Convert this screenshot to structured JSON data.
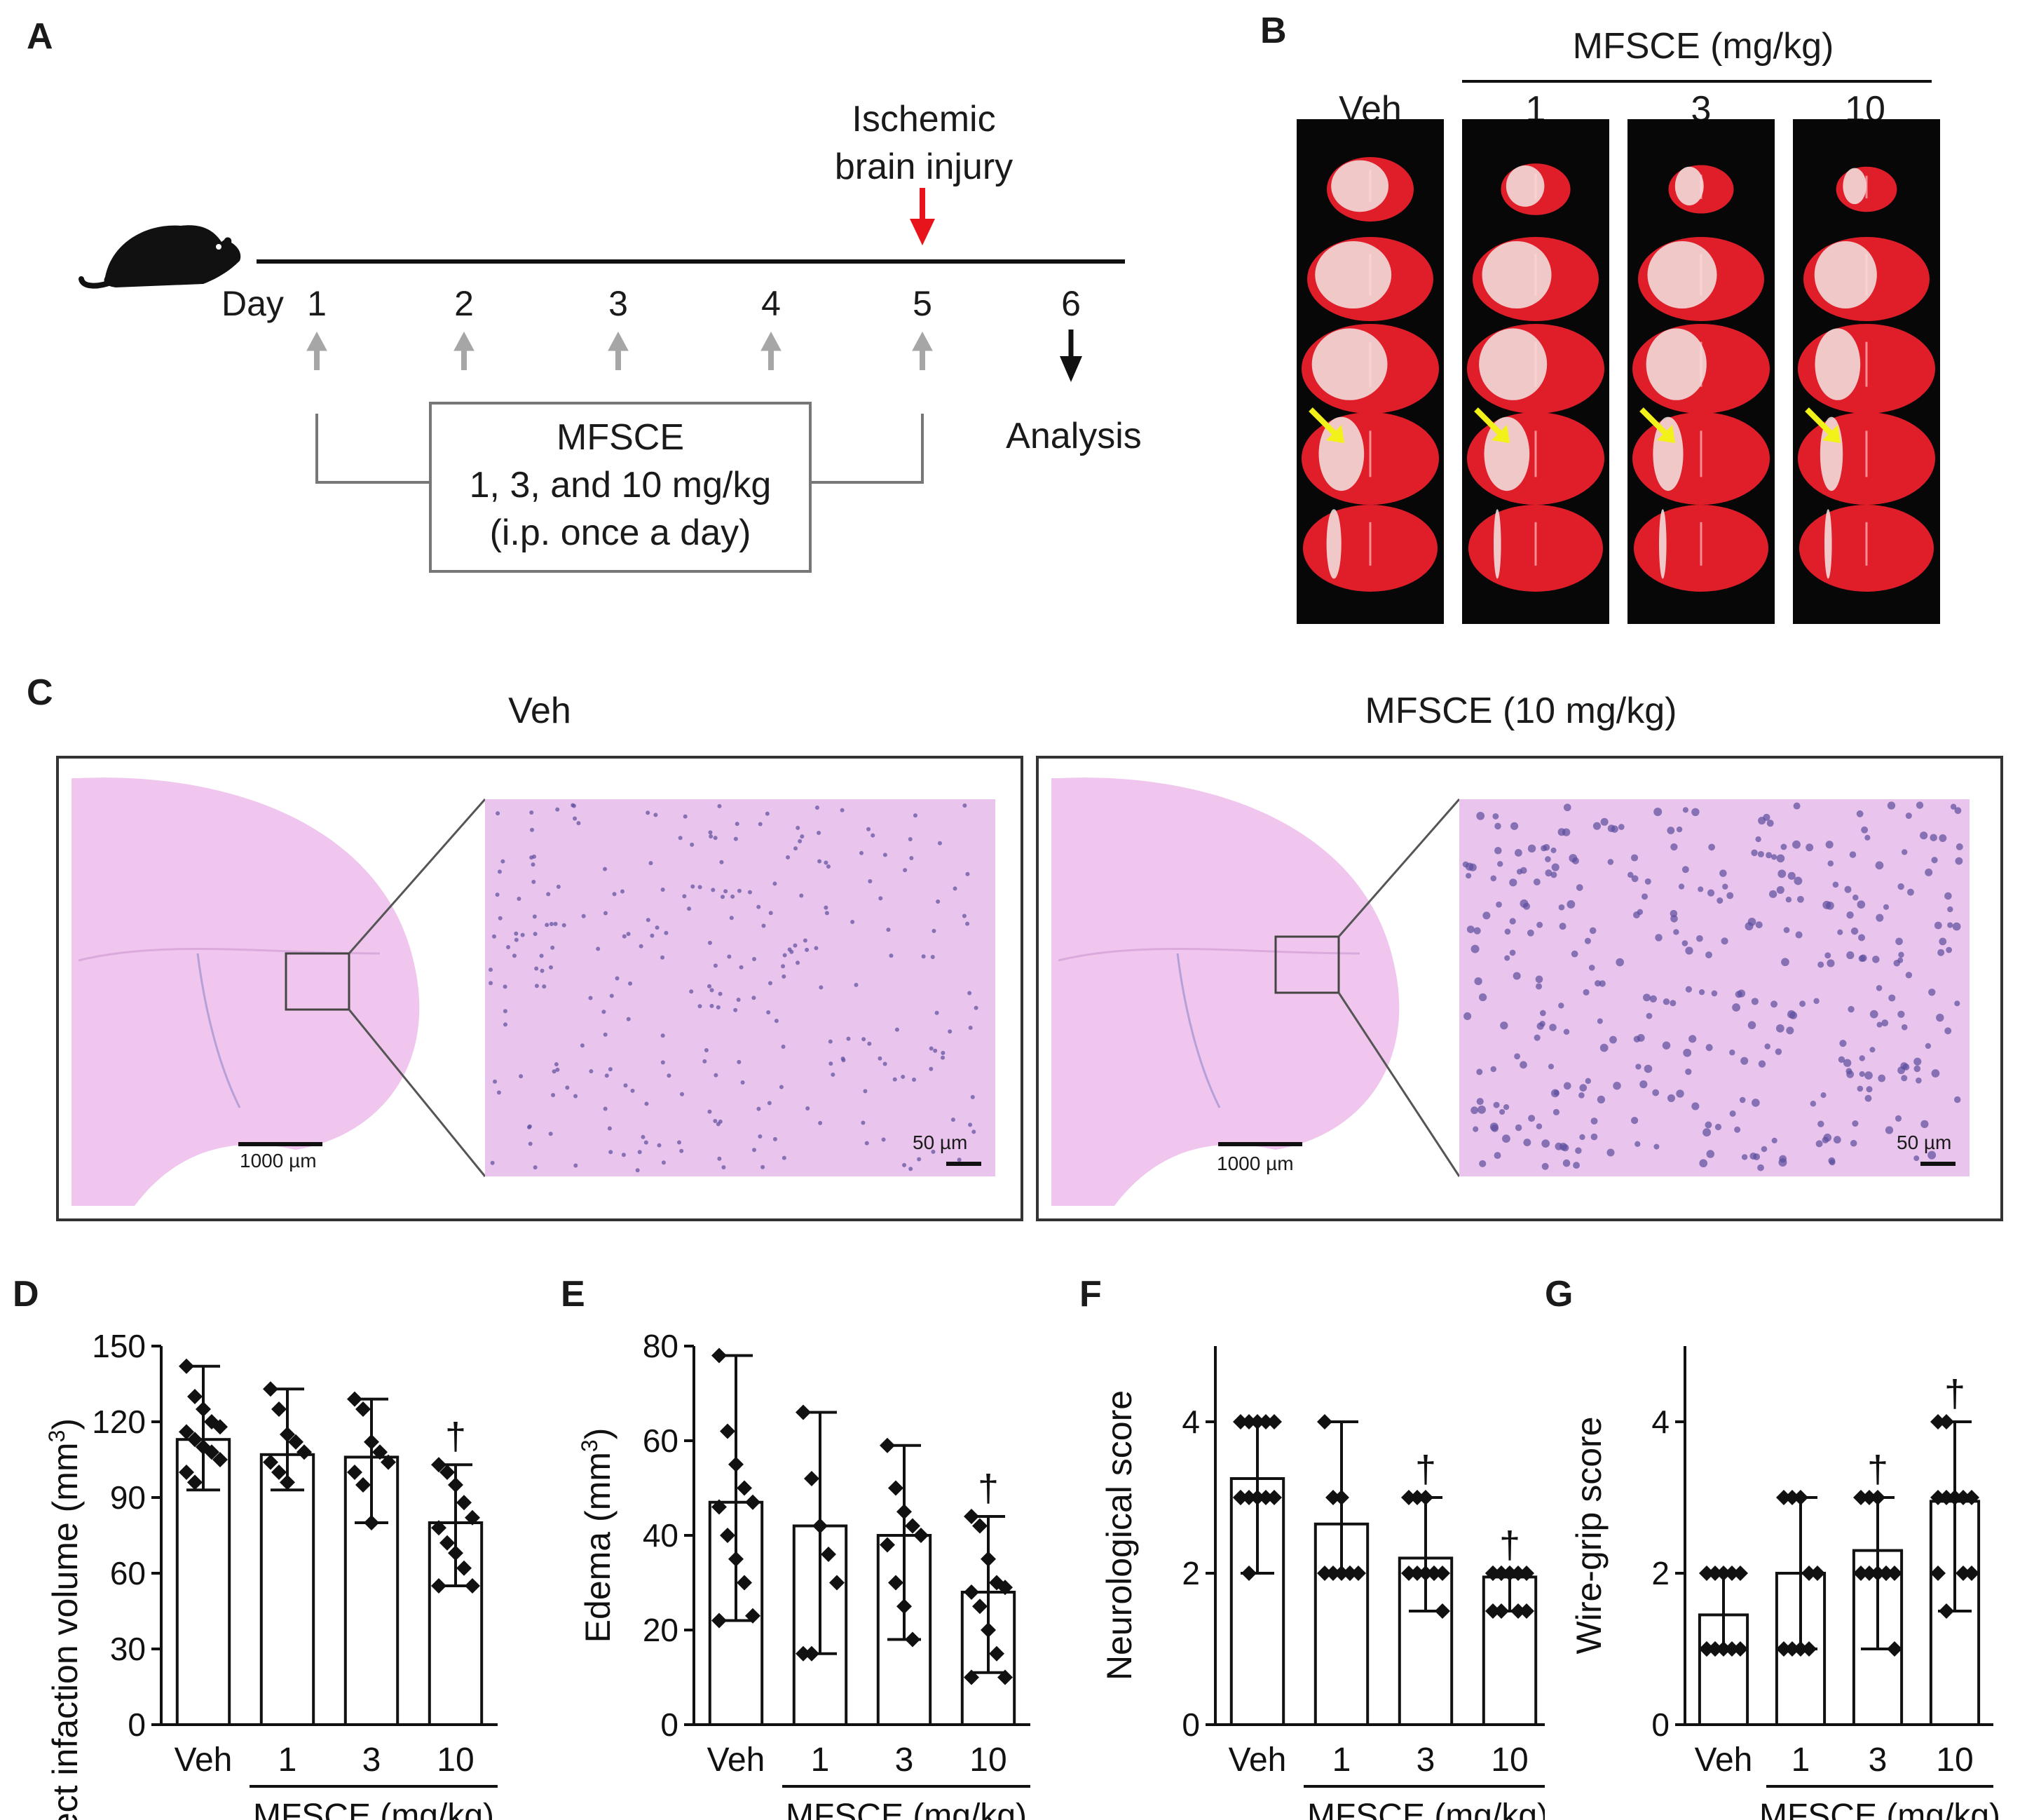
{
  "panels": {
    "a": "A",
    "b": "B",
    "c": "C",
    "d": "D",
    "e": "E",
    "f": "F",
    "g": "G"
  },
  "timeline": {
    "day_label": "Day",
    "days": [
      "1",
      "2",
      "3",
      "4",
      "5",
      "6"
    ],
    "injury_line1": "Ischemic",
    "injury_line2": "brain injury",
    "treatment_line1": "MFSCE",
    "treatment_line2": "1, 3, and 10 mg/kg",
    "treatment_line3": "(i.p. once a day)",
    "analysis": "Analysis",
    "colors": {
      "injury_arrow": "#e8141c",
      "dose_arrow": "#a6a6a6",
      "analysis_arrow": "#111111"
    }
  },
  "ttc": {
    "group_header": "MFSCE (mg/kg)",
    "columns": [
      "Veh",
      "1",
      "3",
      "10"
    ],
    "slices_per_column": 5,
    "colors": {
      "tissue": "#e01e2a",
      "infarct": "#f3e6e4",
      "arrow": "#f2f21a"
    }
  },
  "histology": {
    "left_title": "Veh",
    "right_title": "MFSCE (10 mg/kg)",
    "scale_low": "1000 µm",
    "scale_high": "50 µm",
    "colors": {
      "tissue": "#f0c6ee",
      "cells": "#5b4f9e"
    }
  },
  "chart_data": [
    {
      "type": "bar",
      "panel": "D",
      "ylabel": "Direct infaction volume (mm",
      "ylabel_sup": "3",
      "ylabel_tail": ")",
      "categories": [
        "Veh",
        "1",
        "3",
        "10"
      ],
      "group_label": "MFSCE (mg/kg)",
      "values": [
        113,
        107,
        106,
        80
      ],
      "err_low": [
        93,
        93,
        80,
        55
      ],
      "err_high": [
        142,
        133,
        129,
        103
      ],
      "significance": [
        "",
        "",
        "",
        "†"
      ],
      "ylim": [
        0,
        150
      ],
      "yticks": [
        0,
        30,
        60,
        90,
        120,
        150
      ],
      "points": [
        [
          142,
          130,
          125,
          120,
          118,
          116,
          113,
          110,
          108,
          105,
          100,
          96
        ],
        [
          133,
          125,
          115,
          112,
          108,
          104,
          100,
          96
        ],
        [
          129,
          125,
          112,
          108,
          104,
          100,
          95,
          80
        ],
        [
          103,
          100,
          95,
          88,
          82,
          78,
          72,
          68,
          62,
          55,
          55
        ]
      ]
    },
    {
      "type": "bar",
      "panel": "E",
      "ylabel": "Edema (mm",
      "ylabel_sup": "3",
      "ylabel_tail": ")",
      "categories": [
        "Veh",
        "1",
        "3",
        "10"
      ],
      "group_label": "MFSCE (mg/kg)",
      "values": [
        47,
        42,
        40,
        28
      ],
      "err_low": [
        22,
        15,
        18,
        11
      ],
      "err_high": [
        78,
        66,
        59,
        44
      ],
      "significance": [
        "",
        "",
        "",
        "†"
      ],
      "ylim": [
        0,
        80
      ],
      "yticks": [
        0,
        20,
        40,
        60,
        80
      ],
      "points": [
        [
          78,
          62,
          55,
          50,
          47,
          46,
          40,
          35,
          30,
          23,
          22
        ],
        [
          66,
          52,
          42,
          36,
          30,
          15,
          15
        ],
        [
          59,
          50,
          45,
          42,
          40,
          38,
          30,
          25,
          18
        ],
        [
          44,
          42,
          35,
          30,
          29,
          28,
          25,
          20,
          15,
          10,
          10
        ]
      ]
    },
    {
      "type": "bar",
      "panel": "F",
      "ylabel": "Neurological score",
      "categories": [
        "Veh",
        "1",
        "3",
        "10"
      ],
      "group_label": "MFSCE (mg/kg)",
      "values": [
        3.25,
        2.65,
        2.2,
        1.95
      ],
      "err_low": [
        2.0,
        2.0,
        1.5,
        1.5
      ],
      "err_high": [
        4.0,
        4.0,
        3.0,
        2.0
      ],
      "significance": [
        "",
        "",
        "†",
        "†"
      ],
      "ylim": [
        0,
        5
      ],
      "yticks": [
        0,
        2,
        4
      ],
      "points": [
        [
          4,
          4,
          4,
          4,
          4,
          3,
          3,
          3,
          3,
          3,
          3,
          2
        ],
        [
          4,
          3,
          3,
          2,
          2,
          2,
          2,
          2,
          2
        ],
        [
          3,
          3,
          3,
          2,
          2,
          2,
          2,
          2,
          2,
          1.5
        ],
        [
          2,
          2,
          2,
          2,
          2,
          2,
          2,
          2,
          1.5,
          1.5,
          1.5,
          1.5
        ]
      ]
    },
    {
      "type": "bar",
      "panel": "G",
      "ylabel": "Wire-grip score",
      "categories": [
        "Veh",
        "1",
        "3",
        "10"
      ],
      "group_label": "MFSCE (mg/kg)",
      "values": [
        1.45,
        2.0,
        2.3,
        2.95
      ],
      "err_low": [
        1.0,
        1.0,
        1.0,
        1.5
      ],
      "err_high": [
        2.0,
        3.0,
        3.0,
        4.0
      ],
      "significance": [
        "",
        "",
        "†",
        "†"
      ],
      "ylim": [
        0,
        5
      ],
      "yticks": [
        0,
        2,
        4
      ],
      "points": [
        [
          2,
          2,
          2,
          2,
          2,
          1,
          1,
          1,
          1,
          1,
          1,
          1
        ],
        [
          3,
          3,
          3,
          2,
          2,
          1,
          1,
          1,
          1
        ],
        [
          3,
          3,
          3,
          2,
          2,
          2,
          2,
          2,
          2,
          1
        ],
        [
          4,
          4,
          3,
          3,
          3,
          3,
          3,
          3,
          2,
          2,
          2,
          1.5
        ]
      ]
    }
  ]
}
